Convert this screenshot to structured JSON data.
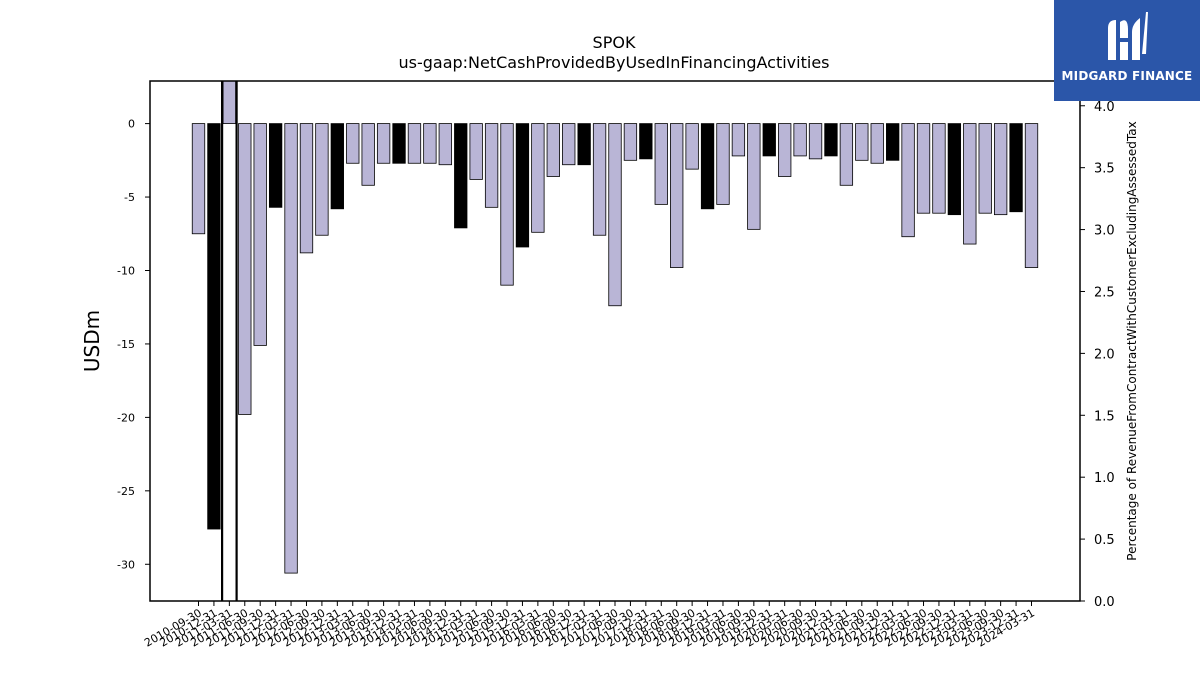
{
  "logo": {
    "text": "MIDGARD FINANCE",
    "icon": "midgard-logo-icon"
  },
  "chart_data": {
    "type": "bar",
    "title": "SPOK",
    "subtitle": "us-gaap:NetCashProvidedByUsedInFinancingActivities",
    "ylabel": "USDm",
    "ylabel_right": "Percentage of RevenueFromContractWithCustomerExcludingAssessedTax",
    "ylim": [
      -32.5,
      2.9
    ],
    "ylim_right": [
      0.0,
      4.2
    ],
    "yticks": [
      0,
      -5,
      -10,
      -15,
      -20,
      -25,
      -30
    ],
    "yticks_right": [
      "0.0",
      "0.5",
      "1.0",
      "1.5",
      "2.0",
      "2.5",
      "3.0",
      "3.5",
      "4.0"
    ],
    "colors": {
      "light": "#b9b5d6",
      "dark": "#000000"
    },
    "categories": [
      "2010-09-30",
      "2010-12-31",
      "2011-03-31",
      "2011-06-30",
      "2011-09-30",
      "2011-12-31",
      "2012-03-31",
      "2012-06-30",
      "2012-09-30",
      "2012-12-31",
      "2013-03-31",
      "2013-06-30",
      "2013-09-30",
      "2013-12-31",
      "2014-03-31",
      "2014-06-30",
      "2014-09-30",
      "2014-12-31",
      "2015-03-31",
      "2015-06-30",
      "2015-09-30",
      "2015-12-31",
      "2016-03-31",
      "2016-06-30",
      "2016-09-30",
      "2016-12-31",
      "2017-03-31",
      "2017-06-30",
      "2017-09-30",
      "2017-12-31",
      "2018-03-31",
      "2018-06-30",
      "2018-09-30",
      "2018-12-31",
      "2019-03-31",
      "2019-06-30",
      "2019-09-30",
      "2019-12-31",
      "2020-03-31",
      "2020-06-30",
      "2020-09-30",
      "2020-12-31",
      "2021-03-31",
      "2021-06-30",
      "2021-09-30",
      "2021-12-31",
      "2022-03-31",
      "2022-06-30",
      "2022-09-30",
      "2022-12-31",
      "2023-03-31",
      "2023-06-30",
      "2023-09-30",
      "2023-12-31",
      "2024-03-31"
    ],
    "values": [
      -7.5,
      -27.6,
      2.9,
      -19.8,
      -15.1,
      -5.7,
      -30.6,
      -8.8,
      -7.6,
      -5.8,
      -2.7,
      -4.2,
      -2.7,
      -2.7,
      -2.7,
      -2.7,
      -2.8,
      -7.1,
      -3.8,
      -5.7,
      -11.0,
      -8.4,
      -7.4,
      -3.6,
      -2.8,
      -2.8,
      -7.6,
      -12.4,
      -2.5,
      -2.4,
      -5.5,
      -9.8,
      -3.1,
      -5.8,
      -5.5,
      -2.2,
      -7.2,
      -2.2,
      -3.6,
      -2.2,
      -2.4,
      -2.2,
      -4.2,
      -2.5,
      -2.7,
      -2.5,
      -7.7,
      -6.1,
      -6.1,
      -6.2,
      -8.2,
      -6.1,
      -6.2,
      -6.0,
      -9.8
    ],
    "bar_styles": [
      "light",
      "dark",
      "light",
      "light",
      "light",
      "dark",
      "light",
      "light",
      "light",
      "dark",
      "light",
      "light",
      "light",
      "dark",
      "light",
      "light",
      "light",
      "dark",
      "light",
      "light",
      "light",
      "dark",
      "light",
      "light",
      "light",
      "dark",
      "light",
      "light",
      "light",
      "dark",
      "light",
      "light",
      "light",
      "dark",
      "light",
      "light",
      "light",
      "dark",
      "light",
      "light",
      "light",
      "dark",
      "light",
      "light",
      "light",
      "dark",
      "light",
      "light",
      "light",
      "dark",
      "light",
      "light",
      "light",
      "dark",
      "light"
    ],
    "highlight_index": 2
  }
}
